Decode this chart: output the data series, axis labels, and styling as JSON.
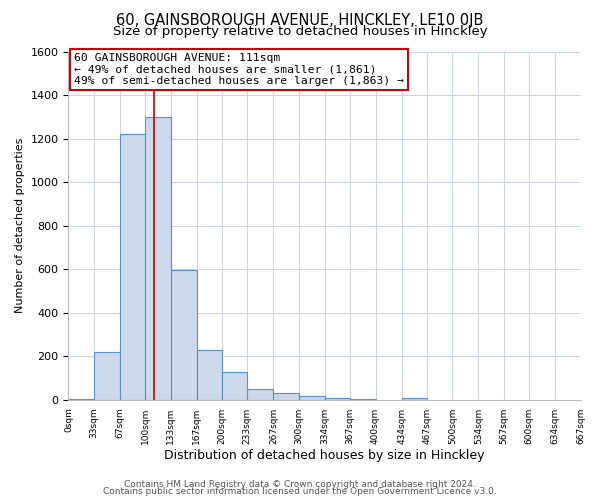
{
  "title": "60, GAINSBOROUGH AVENUE, HINCKLEY, LE10 0JB",
  "subtitle": "Size of property relative to detached houses in Hinckley",
  "xlabel": "Distribution of detached houses by size in Hinckley",
  "ylabel": "Number of detached properties",
  "bar_edges": [
    0,
    33,
    67,
    100,
    133,
    167,
    200,
    233,
    267,
    300,
    334,
    367,
    400,
    434,
    467,
    500,
    534,
    567,
    600,
    634,
    667
  ],
  "bar_heights": [
    5,
    220,
    1220,
    1300,
    595,
    230,
    130,
    50,
    30,
    20,
    10,
    5,
    0,
    10,
    0,
    0,
    0,
    0,
    0,
    0
  ],
  "bar_face_color": "#ccd9ea",
  "bar_edge_color": "#5b8fc4",
  "bar_linewidth": 0.8,
  "vline_x": 111,
  "vline_color": "#cc0000",
  "vline_linewidth": 1.2,
  "annotation_text": "60 GAINSBOROUGH AVENUE: 111sqm\n← 49% of detached houses are smaller (1,861)\n49% of semi-detached houses are larger (1,863) →",
  "annotation_fontsize": 8.2,
  "annotation_box_color": "white",
  "annotation_box_edge": "#cc0000",
  "xlim": [
    0,
    667
  ],
  "ylim": [
    0,
    1600
  ],
  "yticks": [
    0,
    200,
    400,
    600,
    800,
    1000,
    1200,
    1400,
    1600
  ],
  "xtick_labels": [
    "0sqm",
    "33sqm",
    "67sqm",
    "100sqm",
    "133sqm",
    "167sqm",
    "200sqm",
    "233sqm",
    "267sqm",
    "300sqm",
    "334sqm",
    "367sqm",
    "400sqm",
    "434sqm",
    "467sqm",
    "500sqm",
    "534sqm",
    "567sqm",
    "600sqm",
    "634sqm",
    "667sqm"
  ],
  "grid_color": "#c8d4e4",
  "plot_bg_color": "#ffffff",
  "fig_bg_color": "#ffffff",
  "footer_line1": "Contains HM Land Registry data © Crown copyright and database right 2024.",
  "footer_line2": "Contains public sector information licensed under the Open Government Licence v3.0.",
  "title_fontsize": 10.5,
  "subtitle_fontsize": 9.5,
  "xlabel_fontsize": 9,
  "ylabel_fontsize": 8,
  "xtick_fontsize": 6.5,
  "ytick_fontsize": 8,
  "footer_fontsize": 6.5
}
